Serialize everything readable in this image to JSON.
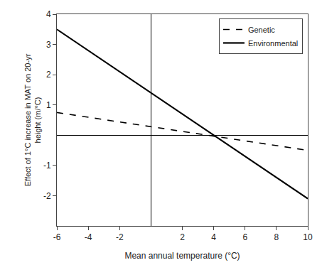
{
  "chart_data": {
    "type": "line",
    "xlabel": "Mean annual temperature (°C)",
    "ylabel": "Effect of 1°C increase in MAT on 20-yr\nheight (m/°C)",
    "x": [
      -6,
      10
    ],
    "series": [
      {
        "name": "Environmental",
        "color": "#000000",
        "line_style": "solid",
        "values": [
          3.5,
          -2.1
        ]
      },
      {
        "name": "Genetic",
        "color": "#000000",
        "line_style": "dashed",
        "values": [
          0.75,
          -0.5
        ]
      }
    ],
    "xlim": [
      -6,
      10
    ],
    "ylim": [
      -3,
      4
    ],
    "xticks": [
      -6,
      -4,
      -2,
      2,
      4,
      6,
      8,
      10
    ],
    "yticks": [
      -2,
      -1,
      1,
      2,
      3,
      4
    ],
    "grid": false,
    "legend": "upper right"
  }
}
